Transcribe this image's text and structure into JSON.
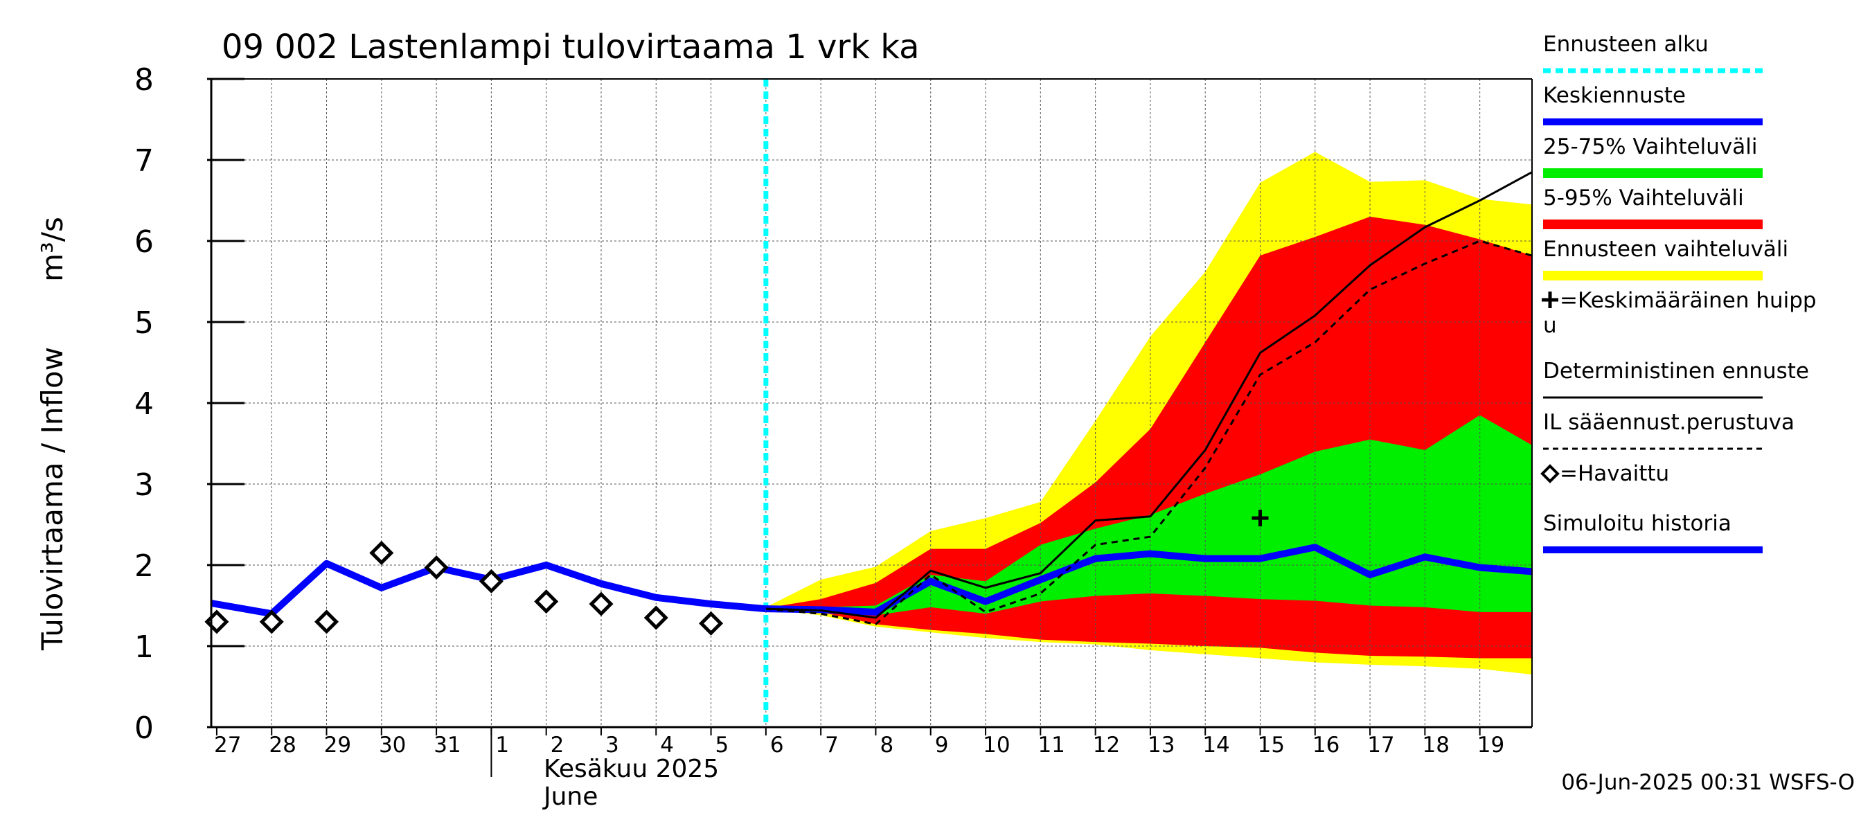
{
  "chart_data": {
    "type": "line",
    "title": "09 002 Lastenlampi tulovirtaama 1 vrk ka",
    "ylabel": "Tulovirtaama / Inflow",
    "yunit": "m³/s",
    "ylim": [
      0,
      8
    ],
    "yticks": [
      0,
      1,
      2,
      3,
      4,
      5,
      6,
      7,
      8
    ],
    "x_start_day_index": -0.1,
    "x_end_day_index": 23.95,
    "x_tick_labels": [
      "27",
      "28",
      "29",
      "30",
      "31",
      "1",
      "2",
      "3",
      "4",
      "5",
      "6",
      "7",
      "8",
      "9",
      "10",
      "11",
      "12",
      "13",
      "14",
      "15",
      "16",
      "17",
      "18",
      "19"
    ],
    "month_label_fi": "Kesäkuu  2025",
    "month_label_en": "June",
    "forecast_start_day_index": 10.0,
    "series": [
      {
        "name": "Simuloitu historia",
        "color": "#0000ff",
        "x": [
          -0.1,
          1,
          2,
          3,
          4,
          5,
          6,
          7,
          8,
          9,
          10
        ],
        "values": [
          1.53,
          1.4,
          2.02,
          1.72,
          1.97,
          1.82,
          2.0,
          1.77,
          1.6,
          1.52,
          1.46
        ]
      },
      {
        "name": "Keskiennuste",
        "color": "#0000ff",
        "x": [
          10,
          11,
          12,
          13,
          14,
          15,
          16,
          17,
          18,
          19,
          20,
          21,
          22,
          23,
          23.95
        ],
        "values": [
          1.46,
          1.45,
          1.42,
          1.8,
          1.55,
          1.82,
          2.08,
          2.14,
          2.08,
          2.08,
          2.22,
          1.88,
          2.1,
          1.97,
          1.92
        ]
      },
      {
        "name": "Deterministinen ennuste",
        "color": "#000000",
        "x": [
          10,
          11,
          12,
          13,
          14,
          15,
          16,
          17,
          18,
          19,
          20,
          21,
          22,
          23,
          23.95
        ],
        "values": [
          1.46,
          1.44,
          1.35,
          1.93,
          1.72,
          1.9,
          2.55,
          2.6,
          3.42,
          4.62,
          5.08,
          5.7,
          6.17,
          6.5,
          6.85
        ]
      },
      {
        "name": "IL sääennust.perustuva",
        "color": "#000000",
        "dashed": true,
        "x": [
          10,
          11,
          12,
          13,
          14,
          15,
          16,
          17,
          18,
          19,
          20,
          21,
          22,
          23,
          23.95
        ],
        "values": [
          1.46,
          1.4,
          1.27,
          1.88,
          1.42,
          1.65,
          2.25,
          2.35,
          3.2,
          4.35,
          4.75,
          5.4,
          5.72,
          6.0,
          5.82
        ]
      }
    ],
    "bands": [
      {
        "name": "Ennusteen vaihteluväli",
        "color": "#ffff00",
        "x": [
          10,
          11,
          12,
          13,
          14,
          15,
          16,
          17,
          18,
          19,
          20,
          21,
          22,
          23,
          23.95
        ],
        "lower": [
          1.46,
          1.38,
          1.24,
          1.17,
          1.1,
          1.05,
          1.02,
          0.95,
          0.9,
          0.85,
          0.8,
          0.77,
          0.75,
          0.72,
          0.65
        ],
        "upper": [
          1.48,
          1.82,
          1.98,
          2.42,
          2.58,
          2.78,
          3.78,
          4.82,
          5.62,
          6.72,
          7.1,
          6.73,
          6.75,
          6.52,
          6.45
        ]
      },
      {
        "name": "5-95% Vaihteluväli",
        "color": "#ff0000",
        "x": [
          10,
          11,
          12,
          13,
          14,
          15,
          16,
          17,
          18,
          19,
          20,
          21,
          22,
          23,
          23.95
        ],
        "lower": [
          1.46,
          1.42,
          1.27,
          1.2,
          1.15,
          1.08,
          1.05,
          1.03,
          1.0,
          0.98,
          0.92,
          0.88,
          0.87,
          0.85,
          0.85
        ],
        "upper": [
          1.47,
          1.58,
          1.78,
          2.2,
          2.2,
          2.52,
          3.02,
          3.68,
          4.75,
          5.82,
          6.05,
          6.3,
          6.2,
          6.02,
          5.82
        ]
      },
      {
        "name": "25-75% Vaihteluväli",
        "color": "#00ee00",
        "x": [
          10,
          11,
          12,
          13,
          14,
          15,
          16,
          17,
          18,
          19,
          20,
          21,
          22,
          23,
          23.95
        ],
        "lower": [
          1.46,
          1.44,
          1.38,
          1.48,
          1.4,
          1.55,
          1.62,
          1.65,
          1.62,
          1.58,
          1.56,
          1.5,
          1.48,
          1.42,
          1.42
        ],
        "upper": [
          1.46,
          1.48,
          1.5,
          1.88,
          1.8,
          2.25,
          2.45,
          2.62,
          2.88,
          3.12,
          3.4,
          3.55,
          3.42,
          3.85,
          3.48
        ]
      }
    ],
    "observed": {
      "name": "Havaittu",
      "x": [
        0,
        1,
        2,
        3,
        4,
        5,
        6,
        7,
        8,
        9
      ],
      "values": [
        1.3,
        1.3,
        1.3,
        2.15,
        1.97,
        1.8,
        1.55,
        1.52,
        1.35,
        1.28
      ]
    },
    "mean_peak": {
      "name": "Keskimääräinen huippu",
      "x": 19,
      "value": 2.58
    },
    "legend": {
      "placement": "right",
      "items": [
        {
          "label": "Ennusteen alku",
          "color": "#00ffff",
          "style": "dotted"
        },
        {
          "label": "Keskiennuste",
          "color": "#0000ff",
          "style": "solid"
        },
        {
          "label": "25-75% Vaihteluväli",
          "color": "#00ee00",
          "style": "band"
        },
        {
          "label": "5-95% Vaihteluväli",
          "color": "#ff0000",
          "style": "band"
        },
        {
          "label": "Ennusteen vaihteluväli",
          "color": "#ffff00",
          "style": "band"
        },
        {
          "label": "=Keskimääräinen huipp",
          "label2": "u",
          "marker": "plus"
        },
        {
          "label": "Deterministinen ennuste",
          "color": "#000000",
          "style": "thin"
        },
        {
          "label": "IL sääennust.perustuva",
          "color": "#000000",
          "style": "dashed"
        },
        {
          "label": "=Havaittu",
          "marker": "diamond"
        },
        {
          "label": "Simuloitu historia",
          "color": "#0000ff",
          "style": "solid"
        }
      ]
    },
    "footer": "06-Jun-2025 00:31 WSFS-O"
  }
}
